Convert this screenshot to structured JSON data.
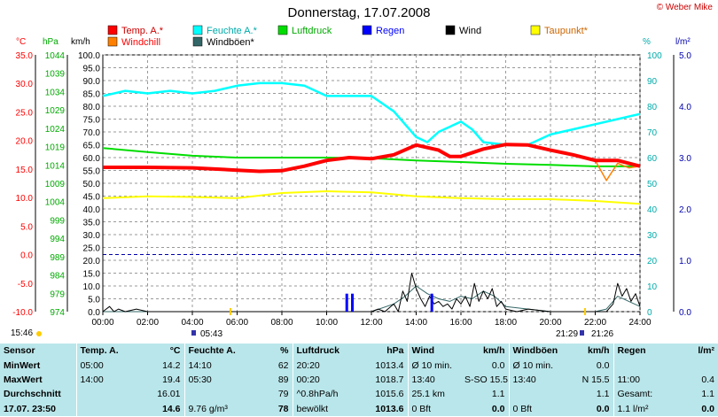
{
  "header": {
    "title": "Donnerstag, 17.07.2008",
    "copyright": "© Weber Mike"
  },
  "legend": [
    {
      "label": "Temp. A.*",
      "color": "#ff0000"
    },
    {
      "label": "Feuchte A.*",
      "color": "#00ffff"
    },
    {
      "label": "Luftdruck",
      "color": "#00dd00"
    },
    {
      "label": "Regen",
      "color": "#0000ff"
    },
    {
      "label": "Wind",
      "color": "#000000"
    },
    {
      "label": "Taupunkt*",
      "color": "#ffff00"
    },
    {
      "label": "Windchill",
      "color": "#ff8000"
    },
    {
      "label": "Windböen*",
      "color": "#336666"
    }
  ],
  "axes": {
    "temp_unit": "°C",
    "pressure_unit": "hPa",
    "wind_unit": "km/h",
    "humidity_unit": "%",
    "rain_unit": "l/m²"
  },
  "time_markers": {
    "left_time": "15:46",
    "sunrise": "05:43",
    "sunset_a": "21:29",
    "sunset_b": "21:26"
  },
  "chart_data": {
    "type": "line",
    "title": "Donnerstag, 17.07.2008",
    "x_ticks": [
      "00:00",
      "02:00",
      "04:00",
      "06:00",
      "08:00",
      "10:00",
      "12:00",
      "14:00",
      "16:00",
      "18:00",
      "20:00",
      "22:00",
      "24:00"
    ],
    "x_range": [
      0,
      24
    ],
    "temp_axis": {
      "unit": "°C",
      "range": [
        -10,
        35
      ],
      "ticks": [
        "35.0",
        "30.0",
        "25.0",
        "20.0",
        "15.0",
        "10.0",
        "5.0",
        "0.0",
        "-5.0",
        "-10.0"
      ]
    },
    "pressure_axis": {
      "unit": "hPa",
      "range": [
        974,
        1044
      ],
      "ticks": [
        "1044",
        "1039",
        "1034",
        "1029",
        "1024",
        "1019",
        "1014",
        "1009",
        "1004",
        "999",
        "994",
        "989",
        "984",
        "979",
        "974"
      ]
    },
    "wind_axis": {
      "unit": "km/h",
      "range": [
        0,
        100
      ],
      "ticks": [
        "100.0",
        "95.0",
        "90.0",
        "85.0",
        "80.0",
        "75.0",
        "70.0",
        "65.0",
        "60.0",
        "55.0",
        "50.0",
        "45.0",
        "40.0",
        "35.0",
        "30.0",
        "25.0",
        "20.0",
        "15.0",
        "10.0",
        "5.0",
        "0.0"
      ]
    },
    "humidity_axis": {
      "unit": "%",
      "range": [
        0,
        100
      ],
      "ticks": [
        "100",
        "90",
        "80",
        "70",
        "60",
        "50",
        "40",
        "30",
        "20",
        "10",
        "0"
      ]
    },
    "rain_axis": {
      "unit": "l/m²",
      "range": [
        0,
        5
      ],
      "ticks": [
        "5.0",
        "4.0",
        "3.0",
        "2.0",
        "1.0",
        "0.0"
      ]
    },
    "series": [
      {
        "name": "Temp. A.*",
        "axis": "temp",
        "color": "#ff0000",
        "x": [
          0,
          2,
          4,
          5,
          6,
          7,
          8,
          9,
          10,
          11,
          12,
          13,
          14,
          15,
          15.5,
          16,
          17,
          18,
          19,
          20,
          21,
          22,
          23,
          24
        ],
        "y": [
          15.3,
          15.3,
          15.2,
          15.0,
          14.8,
          14.6,
          14.7,
          15.5,
          16.5,
          17.0,
          16.8,
          17.5,
          19.2,
          18.3,
          17.2,
          17.2,
          18.5,
          19.3,
          19.2,
          18.3,
          17.5,
          16.5,
          16.5,
          15.5
        ]
      },
      {
        "name": "Windchill",
        "axis": "temp",
        "color": "#ff8000",
        "x": [
          13,
          14,
          15,
          15.5,
          16,
          17,
          18,
          19,
          20,
          21,
          22,
          22.5,
          23,
          23.5,
          24
        ],
        "y": [
          17.5,
          19.2,
          18.5,
          17.2,
          17.2,
          18.5,
          19.3,
          19.2,
          18.3,
          17.5,
          16.5,
          13.0,
          16.0,
          15.2,
          15.5
        ]
      },
      {
        "name": "Feuchte A.*",
        "axis": "humidity",
        "color": "#00ffff",
        "x": [
          0,
          1,
          2,
          3,
          4,
          5,
          6,
          7,
          8,
          9,
          10,
          11,
          12,
          13,
          14,
          14.5,
          15,
          16,
          16.5,
          17,
          18,
          19,
          20,
          21,
          22,
          23,
          24
        ],
        "y": [
          84,
          86,
          85,
          86,
          85,
          86,
          88,
          89,
          89,
          88,
          84,
          84,
          84,
          78,
          68,
          66,
          70,
          74,
          71,
          66,
          65,
          65,
          69,
          71,
          73,
          75,
          77
        ]
      },
      {
        "name": "Luftdruck",
        "axis": "pressure",
        "color": "#00dd00",
        "x": [
          0,
          2,
          4,
          6,
          8,
          10,
          12,
          14,
          16,
          18,
          20,
          22,
          24
        ],
        "y": [
          1018.6,
          1017.5,
          1016.5,
          1016.0,
          1016.0,
          1016.0,
          1015.8,
          1015.2,
          1014.8,
          1014.3,
          1014.0,
          1013.6,
          1013.6
        ]
      },
      {
        "name": "Taupunkt*",
        "axis": "temp",
        "color": "#ffff00",
        "x": [
          0,
          2,
          4,
          6,
          8,
          10,
          12,
          14,
          16,
          18,
          20,
          22,
          24
        ],
        "y": [
          9.9,
          10.2,
          10.1,
          9.9,
          10.8,
          11.1,
          10.9,
          10.2,
          9.9,
          9.7,
          9.7,
          9.4,
          8.9
        ]
      },
      {
        "name": "Wind",
        "axis": "wind",
        "color": "#000000",
        "x": [
          0,
          0.3,
          0.5,
          0.7,
          1,
          1.5,
          2,
          3,
          4,
          5,
          5.5,
          6,
          7,
          8,
          9,
          10,
          11,
          11.5,
          12,
          12.3,
          12.6,
          13,
          13.2,
          13.4,
          13.6,
          13.8,
          14,
          14.2,
          14.4,
          14.6,
          14.8,
          15,
          15.2,
          15.4,
          15.6,
          15.8,
          16,
          16.2,
          16.4,
          16.6,
          16.8,
          17,
          17.2,
          17.4,
          17.6,
          17.8,
          18,
          18.5,
          19,
          20,
          21,
          22,
          22.5,
          22.8,
          23,
          23.2,
          23.4,
          23.6,
          23.8,
          24
        ],
        "y": [
          0,
          2,
          0,
          1,
          0,
          1,
          0,
          0,
          0,
          0,
          0,
          0,
          0,
          0,
          0,
          0,
          0,
          0,
          0,
          1,
          0,
          3,
          0,
          8,
          4,
          15,
          9,
          5,
          2,
          6,
          3,
          4,
          2,
          3,
          1,
          5,
          3,
          6,
          2,
          11,
          4,
          8,
          5,
          9,
          2,
          4,
          1,
          0,
          1,
          0,
          0,
          0,
          0,
          3,
          11,
          6,
          9,
          4,
          7,
          2
        ]
      },
      {
        "name": "Windböen*",
        "axis": "wind",
        "color": "#336666",
        "x": [
          0,
          1,
          2,
          3,
          4,
          5,
          6,
          7,
          8,
          9,
          10,
          11,
          12,
          13,
          13.5,
          14,
          14.5,
          15,
          15.5,
          16,
          16.5,
          17,
          17.5,
          18,
          19,
          20,
          21,
          22,
          22.5,
          23,
          23.5,
          24
        ],
        "y": [
          0,
          0,
          0,
          0,
          0,
          0,
          0,
          0,
          0,
          0,
          0,
          0,
          0,
          3,
          6,
          10,
          7,
          5,
          4,
          6,
          5,
          8,
          6,
          2,
          1,
          0,
          0,
          0,
          1,
          6,
          4,
          2
        ]
      },
      {
        "name": "Regen",
        "axis": "rain",
        "type": "bar",
        "color": "#0000ff",
        "x": [
          10.9,
          11.15,
          14.7
        ],
        "y": [
          0.35,
          0.35,
          0.35
        ]
      }
    ],
    "reference_line": {
      "axis": "temp",
      "value": 0,
      "style": "dashed",
      "color": "#0000aa"
    },
    "grid": true
  },
  "stats": {
    "header": [
      "Sensor",
      "Temp. A.",
      "°C",
      "Feuchte A.",
      "%",
      "Luftdruck",
      "hPa",
      "Wind",
      "km/h",
      "Windböen",
      "km/h",
      "Regen",
      "l/m²"
    ],
    "rows": [
      [
        "MinWert",
        "05:00",
        "14.2",
        "14:10",
        "62",
        "20:20",
        "1013.4",
        "Ø 10 min.",
        "0.0",
        "Ø 10 min.",
        "0.0",
        "",
        ""
      ],
      [
        "MaxWert",
        "14:00",
        "19.4",
        "05:30",
        "89",
        "00:20",
        "1018.7",
        "13:40",
        "S-SO 15.5",
        "13:40",
        "N 15.5",
        "11:00",
        "0.4"
      ],
      [
        "Durchschnitt",
        "",
        "16.01",
        "",
        "79",
        "^0.8hPa/h",
        "1015.6",
        "25.1 km",
        "1.1",
        "",
        "1.1",
        "Gesamt:",
        "1.1"
      ],
      [
        "17.07. 23:50",
        "",
        "14.6",
        "9.76 g/m³",
        "78",
        "bewölkt",
        "1013.6",
        "0 Bft",
        "0.0",
        "0 Bft",
        "0.0",
        "1.1 l/m²",
        "0.0"
      ]
    ]
  }
}
